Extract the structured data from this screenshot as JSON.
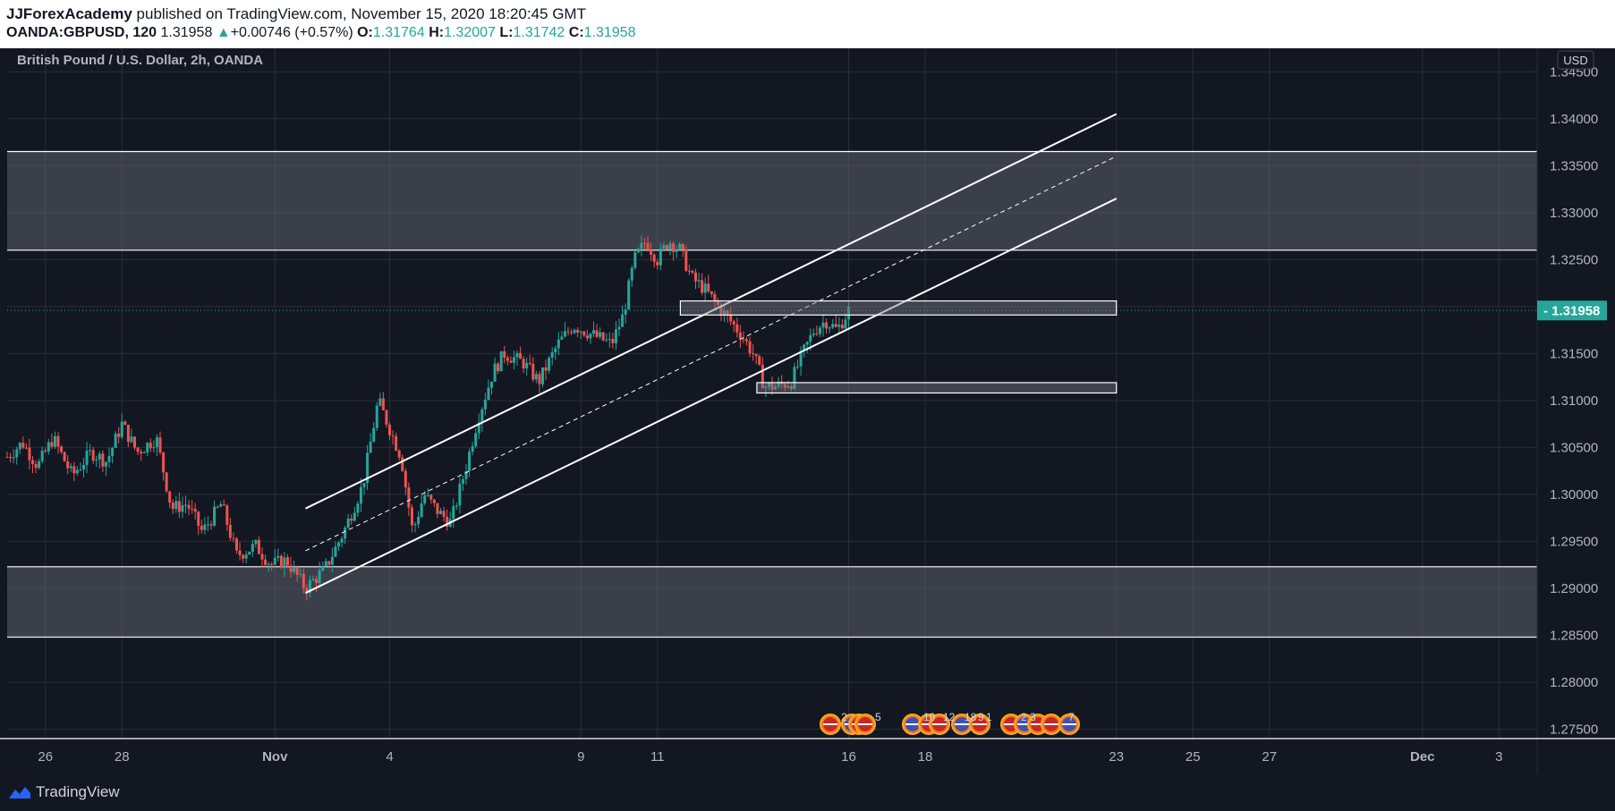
{
  "header": {
    "author": "JJForexAcademy",
    "published": "published on TradingView.com, November 15, 2020 18:20:45 GMT",
    "symbol": "OANDA:GBPUSD",
    "interval": "120",
    "last": "1.31958",
    "change": "+0.00746 (+0.57%)",
    "o_label": "O:",
    "o": "1.31764",
    "h_label": "H:",
    "h": "1.32007",
    "l_label": "L:",
    "l": "1.31742",
    "c_label": "C:",
    "c": "1.31958"
  },
  "colors": {
    "up": "#26a69a",
    "down": "#ef5350",
    "background": "#131722",
    "grid": "#2a2e39",
    "zone": "#5d606b",
    "price_tag": "#26a69a"
  },
  "footer": {
    "brand": "TradingView"
  },
  "chart_data": {
    "type": "candlestick",
    "title": "British Pound / U.S. Dollar, 2h, OANDA",
    "currency": "USD",
    "ylim": [
      1.274,
      1.3475
    ],
    "y_ticks": [
      "1.34500",
      "1.34000",
      "1.33500",
      "1.33000",
      "1.32500",
      "1.32000",
      "1.31500",
      "1.31000",
      "1.30500",
      "1.30000",
      "1.29500",
      "1.29000",
      "1.28500",
      "1.28000",
      "1.27500"
    ],
    "x_ticks": [
      {
        "label": "26",
        "day": 26
      },
      {
        "label": "28",
        "day": 28
      },
      {
        "label": "Nov",
        "day": 32
      },
      {
        "label": "4",
        "day": 35
      },
      {
        "label": "9",
        "day": 40
      },
      {
        "label": "11",
        "day": 42
      },
      {
        "label": "16",
        "day": 47
      },
      {
        "label": "18",
        "day": 49
      },
      {
        "label": "23",
        "day": 54
      },
      {
        "label": "25",
        "day": 56
      },
      {
        "label": "27",
        "day": 58
      },
      {
        "label": "Dec",
        "day": 62
      },
      {
        "label": "3",
        "day": 64
      }
    ],
    "last_price": "1.31958",
    "last_price_value": 1.31958,
    "zones": [
      {
        "name": "resistance-zone",
        "top": 1.3365,
        "bottom": 1.326
      },
      {
        "name": "support-zone",
        "top": 1.2923,
        "bottom": 1.2848
      }
    ],
    "boxes": [
      {
        "name": "upper-box",
        "d1": 42.6,
        "d2": 54.0,
        "top": 1.3206,
        "bottom": 1.3191
      },
      {
        "name": "lower-box",
        "d1": 44.6,
        "d2": 54.0,
        "top": 1.3119,
        "bottom": 1.3108
      }
    ],
    "channel": {
      "upper": [
        [
          32.8,
          1.2985
        ],
        [
          54.0,
          1.3405
        ]
      ],
      "middle": [
        [
          32.8,
          1.294
        ],
        [
          54.0,
          1.336
        ]
      ],
      "lower": [
        [
          32.8,
          1.2895
        ],
        [
          54.0,
          1.3315
        ]
      ]
    },
    "event_badges": [
      "2",
      "5",
      "10",
      "12",
      "18",
      "9",
      "1",
      "2",
      "3",
      "7"
    ],
    "path_points": [
      [
        25.0,
        1.304
      ],
      [
        25.4,
        1.3055
      ],
      [
        25.8,
        1.303
      ],
      [
        26.2,
        1.306
      ],
      [
        26.7,
        1.302
      ],
      [
        27.2,
        1.3045
      ],
      [
        27.6,
        1.3035
      ],
      [
        28.0,
        1.3075
      ],
      [
        28.4,
        1.3045
      ],
      [
        28.9,
        1.306
      ],
      [
        29.3,
        1.2985
      ],
      [
        29.7,
        1.299
      ],
      [
        30.1,
        1.296
      ],
      [
        30.6,
        1.299
      ],
      [
        31.0,
        1.2935
      ],
      [
        31.5,
        1.2945
      ],
      [
        31.9,
        1.2925
      ],
      [
        32.3,
        1.293
      ],
      [
        32.8,
        1.29
      ],
      [
        33.3,
        1.292
      ],
      [
        33.8,
        1.296
      ],
      [
        34.3,
        1.301
      ],
      [
        34.7,
        1.31
      ],
      [
        35.0,
        1.307
      ],
      [
        35.3,
        1.304
      ],
      [
        35.6,
        1.296
      ],
      [
        35.9,
        1.3
      ],
      [
        36.3,
        1.298
      ],
      [
        36.6,
        1.297
      ],
      [
        37.0,
        1.303
      ],
      [
        37.3,
        1.308
      ],
      [
        37.7,
        1.313
      ],
      [
        38.0,
        1.315
      ],
      [
        38.5,
        1.314
      ],
      [
        38.9,
        1.312
      ],
      [
        39.4,
        1.316
      ],
      [
        39.8,
        1.318
      ],
      [
        40.3,
        1.317
      ],
      [
        40.8,
        1.316
      ],
      [
        41.1,
        1.319
      ],
      [
        41.4,
        1.325
      ],
      [
        41.7,
        1.327
      ],
      [
        42.0,
        1.325
      ],
      [
        42.3,
        1.327
      ],
      [
        42.6,
        1.326
      ],
      [
        42.9,
        1.323
      ],
      [
        43.2,
        1.322
      ],
      [
        43.6,
        1.32
      ],
      [
        43.9,
        1.3185
      ],
      [
        44.2,
        1.317
      ],
      [
        44.5,
        1.315
      ],
      [
        44.8,
        1.3115
      ],
      [
        45.1,
        1.3115
      ],
      [
        45.5,
        1.312
      ],
      [
        45.8,
        1.315
      ],
      [
        46.1,
        1.3175
      ],
      [
        46.4,
        1.3185
      ],
      [
        46.7,
        1.3175
      ],
      [
        47.0,
        1.3196
      ]
    ]
  }
}
